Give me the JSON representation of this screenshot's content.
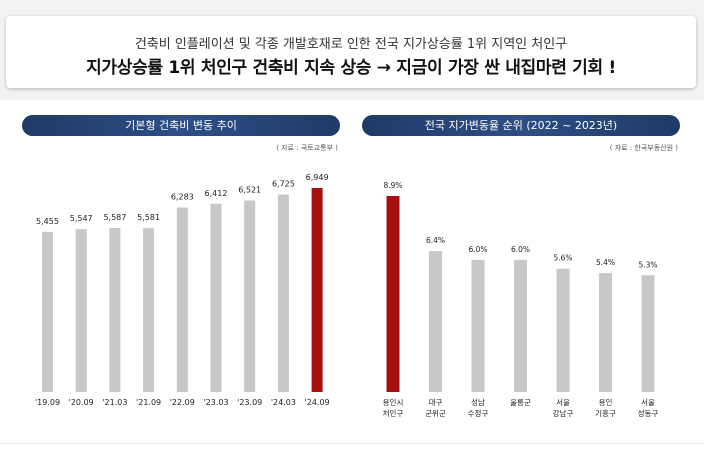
{
  "header": {
    "subtitle": "건축비 인플레이션 및 각종 개발호재로 인한 전국 지가상승률 1위 지역인 처인구",
    "headline": "지가상승률 1위 처인구 건축비 지속 상승 → 지금이 가장 싼 내집마련 기회 !"
  },
  "colors": {
    "bar_default": "#c8c8c8",
    "bar_highlight": "#a50f0f",
    "pill": "#1f3a66"
  },
  "chart_data": [
    {
      "type": "bar",
      "title": "기본형 건축비 변동 추이",
      "source": "( 자료 : 국토교통부 )",
      "categories": [
        "'19.09",
        "'20.09",
        "'21.03",
        "'21.09",
        "'22.09",
        "'23.03",
        "'23.09",
        "'24.03",
        "'24.09"
      ],
      "values": [
        5455,
        5547,
        5587,
        5581,
        6283,
        6412,
        6521,
        6725,
        6949
      ],
      "value_labels": [
        "5,455",
        "5,547",
        "5,587",
        "5,581",
        "6,283",
        "6,412",
        "6,521",
        "6,725",
        "6,949"
      ],
      "highlight_index": 8,
      "ylim": [
        0,
        7800
      ],
      "xlabel": "",
      "ylabel": "",
      "grid": false
    },
    {
      "type": "bar",
      "title": "전국 지가변동율 순위 (2022 ~ 2023년)",
      "source": "( 자료 : 한국부동산원 )",
      "categories": [
        [
          "용인시",
          "처인구"
        ],
        [
          "대구",
          "군위군"
        ],
        [
          "성남",
          "수정구"
        ],
        [
          "울릉군"
        ],
        [
          "서울",
          "강남구"
        ],
        [
          "용인",
          "기흥구"
        ],
        [
          "서울",
          "성동구"
        ]
      ],
      "values": [
        8.9,
        6.4,
        6.0,
        6.0,
        5.6,
        5.4,
        5.3
      ],
      "value_labels": [
        "8.9%",
        "6.4%",
        "6.0%",
        "6.0%",
        "5.6%",
        "5.4%",
        "5.3%"
      ],
      "highlight_index": 0,
      "ylim": [
        0,
        10.4
      ],
      "xlabel": "",
      "ylabel": "",
      "grid": false
    }
  ]
}
